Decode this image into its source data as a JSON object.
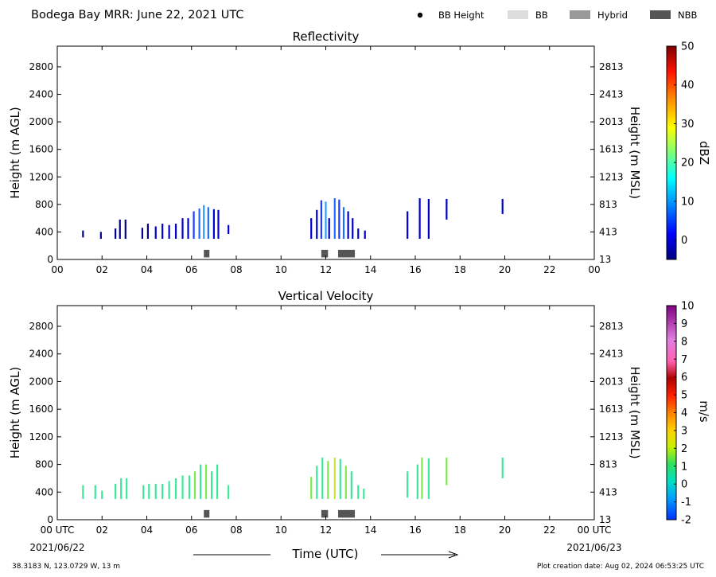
{
  "page": {
    "title": "Bodega Bay MRR:  June 22, 2021 UTC",
    "station_info": "38.3183 N, 123.0729 W, 13 m",
    "creation_date": "Plot creation date: Aug 02, 2024 06:53:25 UTC",
    "start_date": "2021/06/22",
    "end_date": "2021/06/23"
  },
  "legend": {
    "placement": "top-right",
    "items": [
      {
        "label": "BB Height",
        "kind": "dot",
        "color": "#000000"
      },
      {
        "label": "BB",
        "kind": "swatch",
        "color": "#dddddd"
      },
      {
        "label": "Hybrid",
        "kind": "swatch",
        "color": "#999999"
      },
      {
        "label": "NBB",
        "kind": "swatch",
        "color": "#555555"
      }
    ]
  },
  "colors": {
    "reflectivity_low": "#00008b",
    "reflectivity_mid": "#1c6cff",
    "velocity_main": "#3ee89a",
    "velocity_alt": "#7fe84a",
    "bb_class_nbb": "#555555"
  },
  "chart_data": [
    {
      "type": "heatmap",
      "title": "Reflectivity",
      "xlabel": "",
      "ylabel": "Height (m AGL)",
      "ylabel_right": "Height (m MSL)",
      "xlim": [
        0,
        24
      ],
      "ylim": [
        0,
        3100
      ],
      "x_ticks": [
        "00",
        "02",
        "04",
        "06",
        "08",
        "10",
        "12",
        "14",
        "16",
        "18",
        "20",
        "22",
        "00"
      ],
      "y_ticks": [
        0,
        400,
        800,
        1200,
        1600,
        2000,
        2400,
        2800
      ],
      "y_ticks_right": [
        "13",
        "413",
        "813",
        "1213",
        "1613",
        "2013",
        "2413",
        "2813"
      ],
      "colorbar": {
        "label": "dBZ",
        "range": [
          -5,
          50
        ],
        "ticks": [
          "0",
          "10",
          "20",
          "30",
          "40",
          "50"
        ]
      },
      "grid": false,
      "echo_columns": [
        {
          "time": 1.15,
          "top": 420,
          "base": 320,
          "color": "#00008b"
        },
        {
          "time": 1.95,
          "top": 400,
          "base": 300,
          "color": "#00008b"
        },
        {
          "time": 2.6,
          "top": 450,
          "base": 300,
          "color": "#00008b"
        },
        {
          "time": 2.8,
          "top": 580,
          "base": 300,
          "color": "#00008b"
        },
        {
          "time": 3.05,
          "top": 580,
          "base": 300,
          "color": "#00008b"
        },
        {
          "time": 3.8,
          "top": 460,
          "base": 300,
          "color": "#00008b"
        },
        {
          "time": 4.05,
          "top": 520,
          "base": 300,
          "color": "#00008b"
        },
        {
          "time": 4.4,
          "top": 480,
          "base": 300,
          "color": "#0000cd"
        },
        {
          "time": 4.7,
          "top": 520,
          "base": 300,
          "color": "#0000cd"
        },
        {
          "time": 5.0,
          "top": 500,
          "base": 300,
          "color": "#0000cd"
        },
        {
          "time": 5.3,
          "top": 520,
          "base": 300,
          "color": "#0000cd"
        },
        {
          "time": 5.6,
          "top": 600,
          "base": 300,
          "color": "#0000cd"
        },
        {
          "time": 5.85,
          "top": 600,
          "base": 300,
          "color": "#0000cd"
        },
        {
          "time": 6.1,
          "top": 700,
          "base": 300,
          "color": "#1c3cff"
        },
        {
          "time": 6.35,
          "top": 740,
          "base": 300,
          "color": "#1c6cff"
        },
        {
          "time": 6.55,
          "top": 790,
          "base": 300,
          "color": "#2a9cff"
        },
        {
          "time": 6.75,
          "top": 760,
          "base": 300,
          "color": "#1c6cff"
        },
        {
          "time": 7.0,
          "top": 730,
          "base": 300,
          "color": "#0000cd"
        },
        {
          "time": 7.2,
          "top": 720,
          "base": 300,
          "color": "#0000cd"
        },
        {
          "time": 7.65,
          "top": 500,
          "base": 370,
          "color": "#0000cd"
        },
        {
          "time": 11.35,
          "top": 600,
          "base": 300,
          "color": "#0000cd"
        },
        {
          "time": 11.6,
          "top": 720,
          "base": 300,
          "color": "#0000cd"
        },
        {
          "time": 11.8,
          "top": 860,
          "base": 300,
          "color": "#1c3cff"
        },
        {
          "time": 12.0,
          "top": 840,
          "base": 300,
          "color": "#2a9cff"
        },
        {
          "time": 12.15,
          "top": 600,
          "base": 300,
          "color": "#0000cd"
        },
        {
          "time": 12.4,
          "top": 890,
          "base": 300,
          "color": "#1c6cff"
        },
        {
          "time": 12.6,
          "top": 870,
          "base": 300,
          "color": "#1c3cff"
        },
        {
          "time": 12.8,
          "top": 760,
          "base": 300,
          "color": "#1c6cff"
        },
        {
          "time": 13.0,
          "top": 700,
          "base": 300,
          "color": "#0000cd"
        },
        {
          "time": 13.2,
          "top": 600,
          "base": 300,
          "color": "#0000cd"
        },
        {
          "time": 13.45,
          "top": 450,
          "base": 300,
          "color": "#0000cd"
        },
        {
          "time": 13.75,
          "top": 420,
          "base": 300,
          "color": "#0000cd"
        },
        {
          "time": 15.65,
          "top": 700,
          "base": 300,
          "color": "#0000cd"
        },
        {
          "time": 16.2,
          "top": 890,
          "base": 300,
          "color": "#0000cd"
        },
        {
          "time": 16.6,
          "top": 880,
          "base": 300,
          "color": "#0000cd"
        },
        {
          "time": 17.4,
          "top": 880,
          "base": 580,
          "color": "#0000cd"
        },
        {
          "time": 19.9,
          "top": 880,
          "base": 660,
          "color": "#0000cd"
        }
      ],
      "bb_classification": [
        {
          "class": "NBB",
          "start": 6.55,
          "end": 6.8
        },
        {
          "class": "NBB",
          "start": 11.8,
          "end": 12.1
        },
        {
          "class": "NBB",
          "start": 12.55,
          "end": 13.3
        }
      ]
    },
    {
      "type": "heatmap",
      "title": "Vertical Velocity",
      "xlabel": "Time (UTC)",
      "ylabel": "Height (m AGL)",
      "ylabel_right": "Height (m MSL)",
      "xlim": [
        0,
        24
      ],
      "ylim": [
        0,
        3100
      ],
      "x_ticks": [
        "00 UTC",
        "02",
        "04",
        "06",
        "08",
        "10",
        "12",
        "14",
        "16",
        "18",
        "20",
        "22",
        "00 UTC"
      ],
      "y_ticks": [
        0,
        400,
        800,
        1200,
        1600,
        2000,
        2400,
        2800
      ],
      "y_ticks_right": [
        "13",
        "413",
        "813",
        "1213",
        "1613",
        "2013",
        "2413",
        "2813"
      ],
      "colorbar": {
        "label": "m/s",
        "range": [
          -2,
          10
        ],
        "ticks": [
          "-2",
          "-1",
          "0",
          "1",
          "2",
          "3",
          "4",
          "5",
          "6",
          "7",
          "8",
          "9",
          "10"
        ]
      },
      "grid": false,
      "echo_columns": [
        {
          "time": 1.15,
          "top": 500,
          "base": 300,
          "color": "#3ee89a"
        },
        {
          "time": 1.7,
          "top": 500,
          "base": 300,
          "color": "#3ee89a"
        },
        {
          "time": 2.0,
          "top": 420,
          "base": 300,
          "color": "#3ee89a"
        },
        {
          "time": 2.6,
          "top": 520,
          "base": 300,
          "color": "#3ee89a"
        },
        {
          "time": 2.85,
          "top": 600,
          "base": 300,
          "color": "#3ee89a"
        },
        {
          "time": 3.1,
          "top": 600,
          "base": 300,
          "color": "#3ee89a"
        },
        {
          "time": 3.85,
          "top": 500,
          "base": 300,
          "color": "#3ee89a"
        },
        {
          "time": 4.1,
          "top": 520,
          "base": 300,
          "color": "#3ee89a"
        },
        {
          "time": 4.4,
          "top": 520,
          "base": 300,
          "color": "#3ee89a"
        },
        {
          "time": 4.7,
          "top": 520,
          "base": 300,
          "color": "#3ee89a"
        },
        {
          "time": 5.0,
          "top": 560,
          "base": 300,
          "color": "#3ee89a"
        },
        {
          "time": 5.3,
          "top": 600,
          "base": 300,
          "color": "#3ee89a"
        },
        {
          "time": 5.6,
          "top": 640,
          "base": 300,
          "color": "#3ee89a"
        },
        {
          "time": 5.9,
          "top": 640,
          "base": 300,
          "color": "#3ee89a"
        },
        {
          "time": 6.15,
          "top": 700,
          "base": 300,
          "color": "#7fe84a"
        },
        {
          "time": 6.4,
          "top": 800,
          "base": 300,
          "color": "#3ee89a"
        },
        {
          "time": 6.65,
          "top": 800,
          "base": 300,
          "color": "#7fe84a"
        },
        {
          "time": 6.9,
          "top": 700,
          "base": 300,
          "color": "#3ee89a"
        },
        {
          "time": 7.15,
          "top": 800,
          "base": 300,
          "color": "#3ee89a"
        },
        {
          "time": 7.65,
          "top": 500,
          "base": 300,
          "color": "#3ee89a"
        },
        {
          "time": 11.35,
          "top": 620,
          "base": 300,
          "color": "#7fe84a"
        },
        {
          "time": 11.6,
          "top": 780,
          "base": 300,
          "color": "#3ee89a"
        },
        {
          "time": 11.85,
          "top": 900,
          "base": 300,
          "color": "#3ee89a"
        },
        {
          "time": 12.1,
          "top": 850,
          "base": 300,
          "color": "#7fe84a"
        },
        {
          "time": 12.4,
          "top": 900,
          "base": 300,
          "color": "#c8e830"
        },
        {
          "time": 12.65,
          "top": 880,
          "base": 300,
          "color": "#3ee89a"
        },
        {
          "time": 12.9,
          "top": 780,
          "base": 300,
          "color": "#7fe84a"
        },
        {
          "time": 13.15,
          "top": 700,
          "base": 300,
          "color": "#3ee89a"
        },
        {
          "time": 13.45,
          "top": 500,
          "base": 300,
          "color": "#3ee89a"
        },
        {
          "time": 13.7,
          "top": 450,
          "base": 300,
          "color": "#3ee89a"
        },
        {
          "time": 15.65,
          "top": 700,
          "base": 320,
          "color": "#3ee89a"
        },
        {
          "time": 16.1,
          "top": 800,
          "base": 300,
          "color": "#3ee89a"
        },
        {
          "time": 16.3,
          "top": 900,
          "base": 300,
          "color": "#7fe84a"
        },
        {
          "time": 16.6,
          "top": 890,
          "base": 300,
          "color": "#3ee89a"
        },
        {
          "time": 17.4,
          "top": 900,
          "base": 500,
          "color": "#7fe84a"
        },
        {
          "time": 19.9,
          "top": 900,
          "base": 600,
          "color": "#3ee89a"
        }
      ],
      "bb_classification": [
        {
          "class": "NBB",
          "start": 6.55,
          "end": 6.8
        },
        {
          "class": "NBB",
          "start": 11.8,
          "end": 12.1
        },
        {
          "class": "NBB",
          "start": 12.55,
          "end": 13.3
        }
      ]
    }
  ]
}
